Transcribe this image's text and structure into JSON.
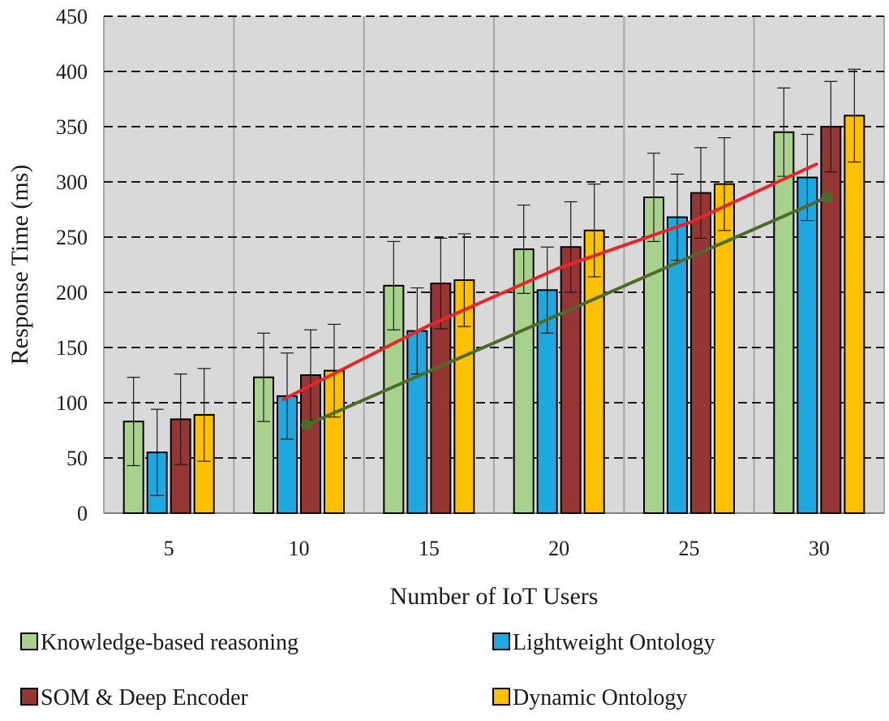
{
  "chart_data": {
    "type": "bar",
    "title": "",
    "xlabel": "Number of IoT Users",
    "ylabel": "Response Time (ms)",
    "ylim": [
      0,
      450
    ],
    "yticks": [
      0,
      50,
      100,
      150,
      200,
      250,
      300,
      350,
      400,
      450
    ],
    "grid": true,
    "legend_position": "bottom",
    "categories": [
      "5",
      "10",
      "15",
      "20",
      "25",
      "30"
    ],
    "series": [
      {
        "name": "Knowledge-based reasoning",
        "color": "#a9d18e",
        "values": [
          83,
          123,
          206,
          239,
          286,
          345
        ],
        "errors": [
          40,
          40,
          40,
          40,
          40,
          40
        ]
      },
      {
        "name": "Lightweight Ontology",
        "color": "#1fa8e0",
        "values": [
          55,
          106,
          165,
          202,
          268,
          304
        ],
        "errors": [
          39,
          39,
          39,
          39,
          39,
          39
        ]
      },
      {
        "name": "SOM & Deep Encoder",
        "color": "#963634",
        "values": [
          85,
          125,
          208,
          241,
          290,
          350
        ],
        "errors": [
          41,
          41,
          41,
          41,
          41,
          41
        ]
      },
      {
        "name": "Dynamic Ontology",
        "color": "#ffc000",
        "values": [
          89,
          129,
          211,
          256,
          298,
          360
        ],
        "errors": [
          42,
          42,
          42,
          42,
          42,
          42
        ]
      }
    ],
    "trendlines": [
      {
        "name": "red-trend",
        "color": "#e8262a",
        "markers": false,
        "points": [
          [
            9.4,
            103
          ],
          [
            15,
            170
          ],
          [
            20,
            222
          ],
          [
            25,
            263
          ],
          [
            29.9,
            316
          ]
        ]
      },
      {
        "name": "green-trend",
        "color": "#4f6b2c",
        "markers": true,
        "points": [
          [
            10.3,
            80
          ],
          [
            30.3,
            286
          ]
        ]
      }
    ]
  }
}
